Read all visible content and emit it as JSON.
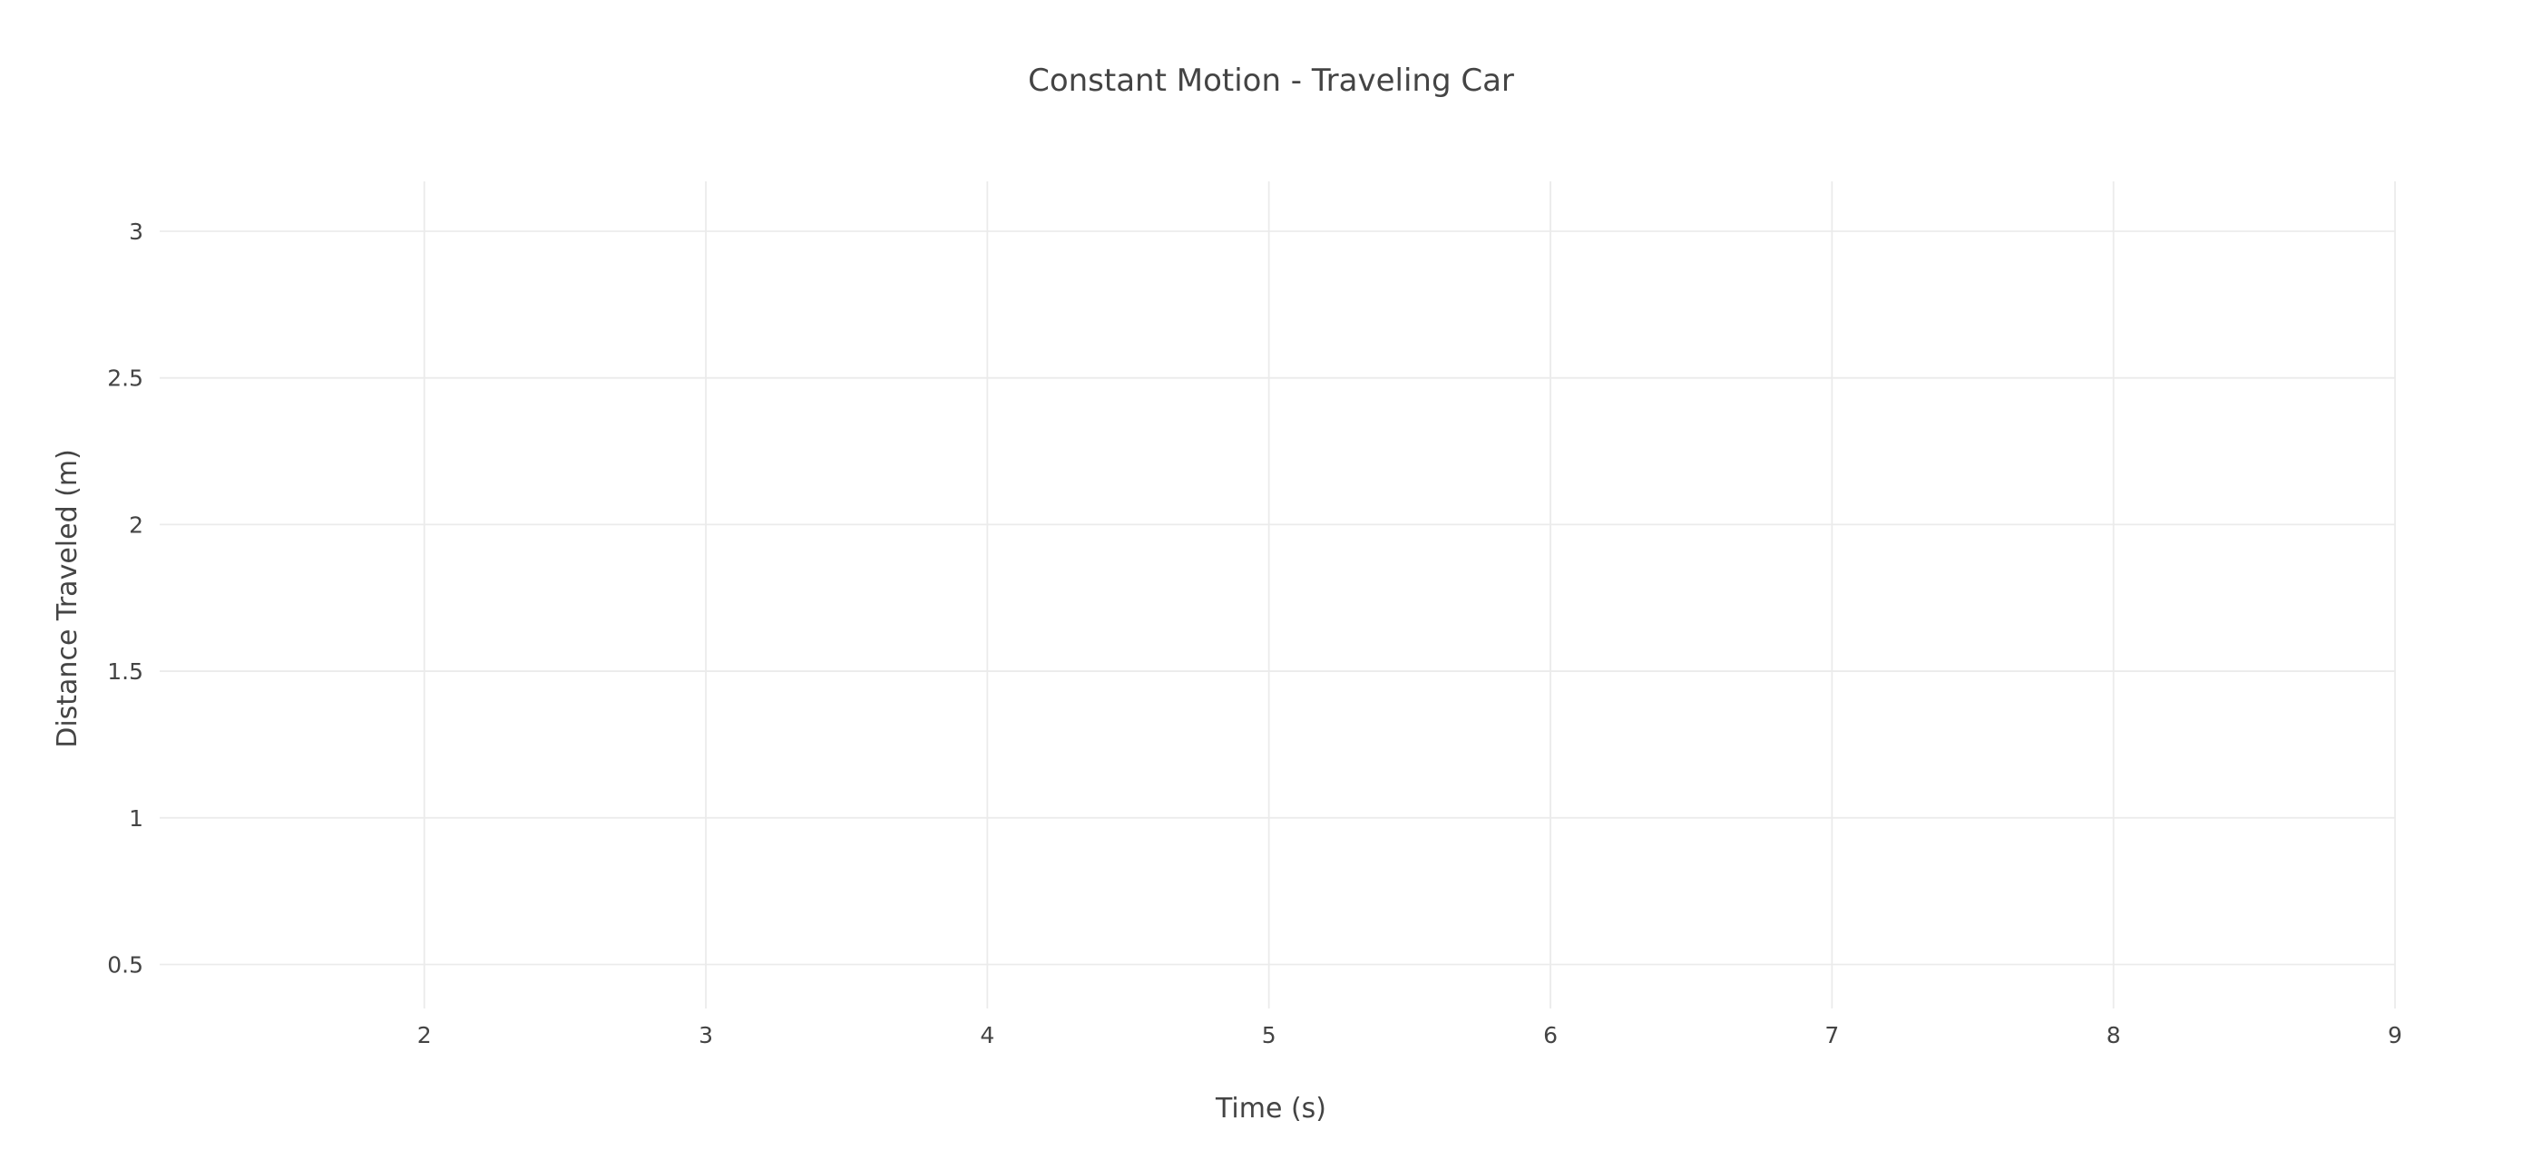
{
  "chart_data": {
    "type": "line",
    "title": "Constant Motion - Traveling Car",
    "xlabel": "Time (s)",
    "ylabel": "Distance Traveled (m)",
    "xlim": [
      1.06,
      9.0
    ],
    "ylim": [
      0.35,
      3.17
    ],
    "x_ticks": [
      {
        "value": 2,
        "label": "2"
      },
      {
        "value": 3,
        "label": "3"
      },
      {
        "value": 4,
        "label": "4"
      },
      {
        "value": 5,
        "label": "5"
      },
      {
        "value": 6,
        "label": "6"
      },
      {
        "value": 7,
        "label": "7"
      },
      {
        "value": 8,
        "label": "8"
      },
      {
        "value": 9,
        "label": "9"
      }
    ],
    "y_ticks": [
      {
        "value": 0.5,
        "label": "0.5"
      },
      {
        "value": 1,
        "label": "1"
      },
      {
        "value": 1.5,
        "label": "1.5"
      },
      {
        "value": 2,
        "label": "2"
      },
      {
        "value": 2.5,
        "label": "2.5"
      },
      {
        "value": 3,
        "label": "3"
      }
    ],
    "grid": true,
    "series": []
  }
}
